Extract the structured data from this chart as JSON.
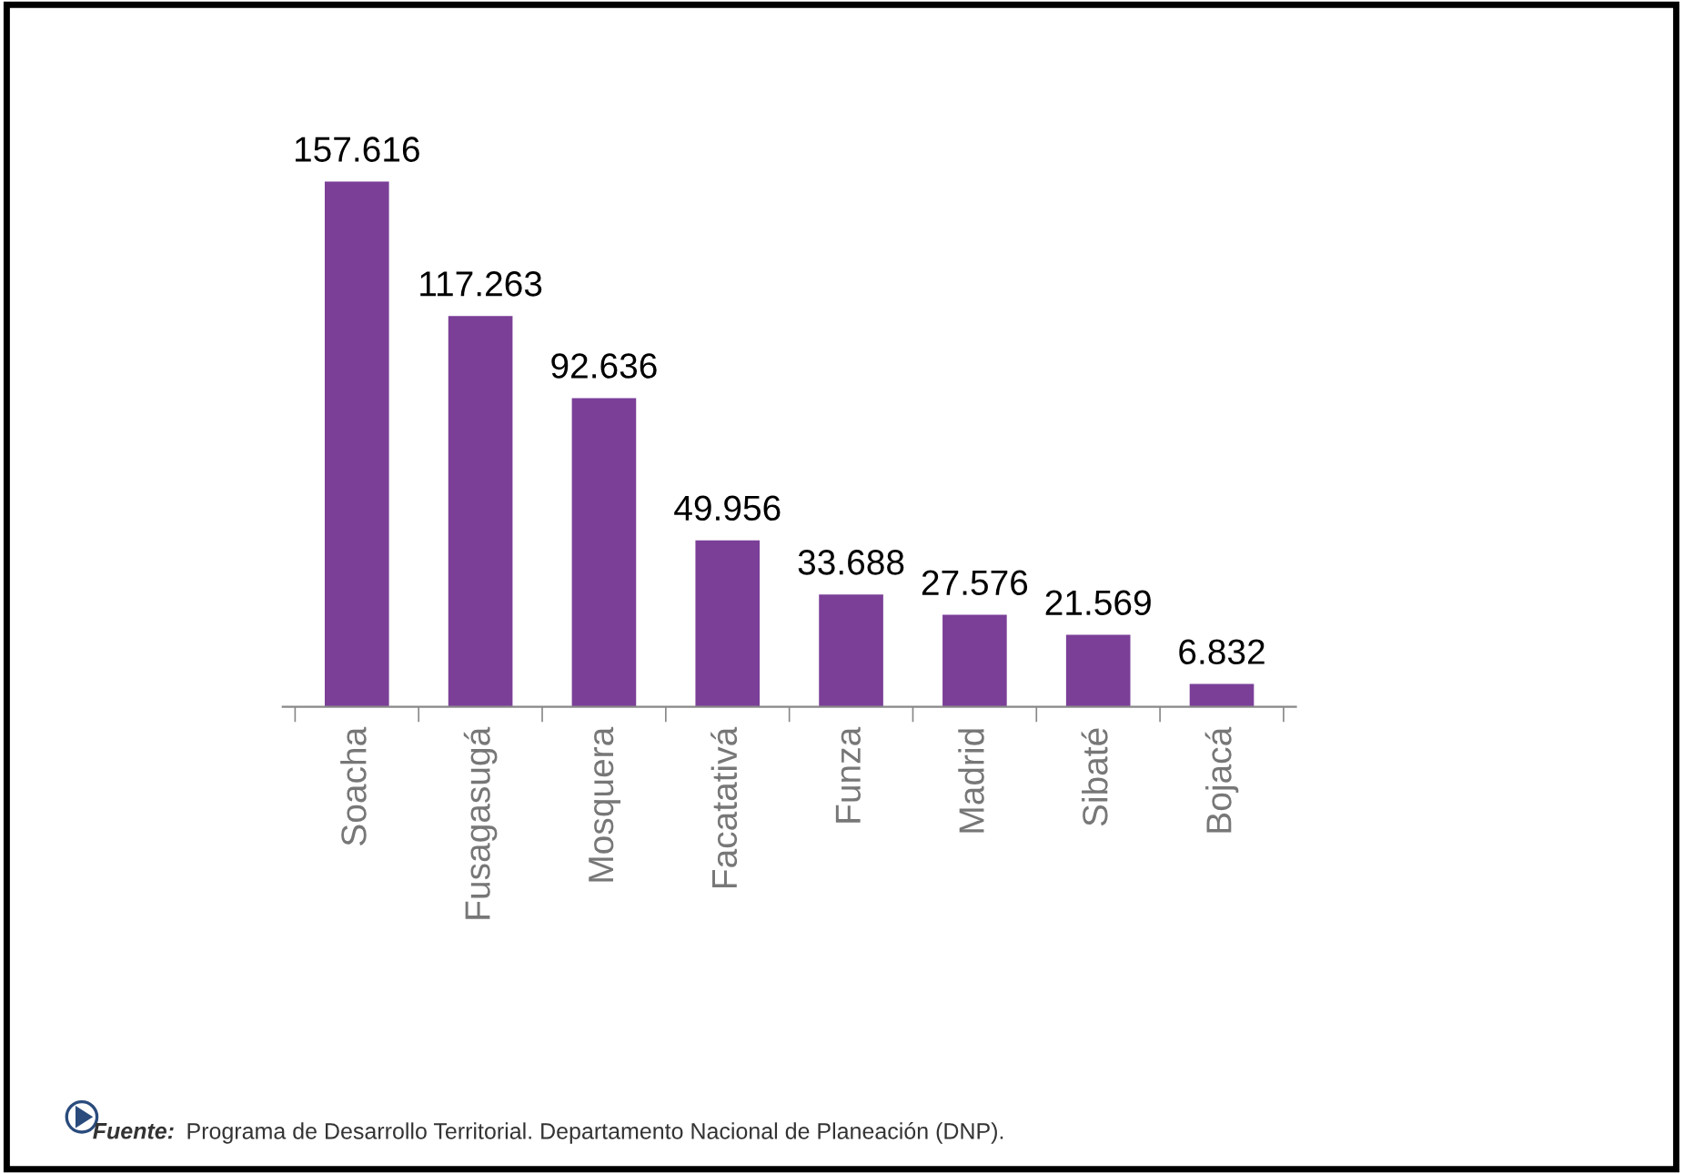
{
  "chart_data": {
    "type": "bar",
    "categories": [
      "Soacha",
      "Fusagasugá",
      "Mosquera",
      "Facatativá",
      "Funza",
      "Madrid",
      "Sibaté",
      "Bojacá"
    ],
    "values": [
      157616,
      117263,
      92636,
      49956,
      33688,
      27576,
      21569,
      6832
    ],
    "value_labels": [
      "157.616",
      "117.263",
      "92.636",
      "49.956",
      "33.688",
      "27.576",
      "21.569",
      "6.832"
    ],
    "color": "#7b3f98",
    "grid": false,
    "legend": false,
    "annotations": [
      "Fuente: Programa de Desarrollo Territorial. Departamento Nacional de Planeación (DNP)."
    ]
  }
}
